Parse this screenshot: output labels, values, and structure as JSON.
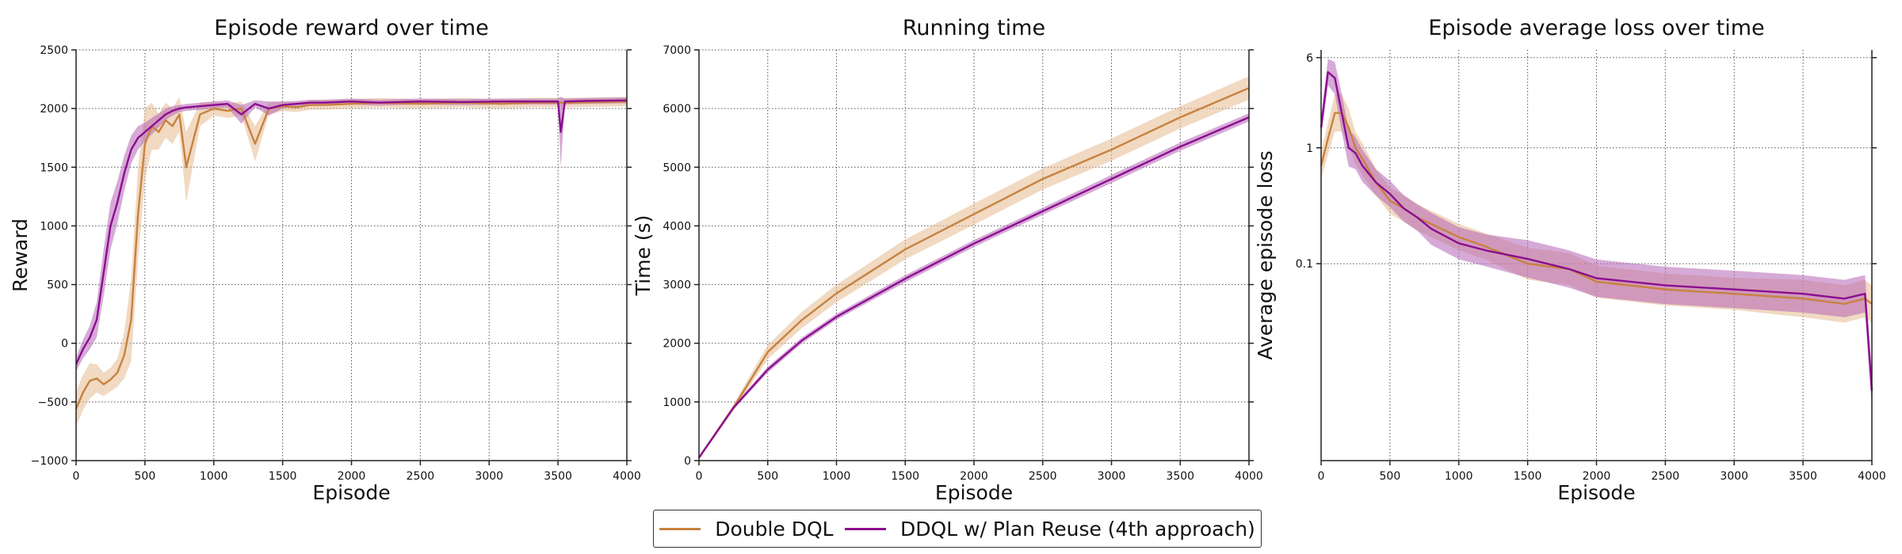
{
  "colors": {
    "double_dql": "#c7823f",
    "ddql_plan": "#8b0e8f",
    "band_double": "#e6b990",
    "band_plan": "#b565b6"
  },
  "legend": [
    {
      "name": "Double DQL",
      "color": "#c7823f"
    },
    {
      "name": "DDQL w/ Plan Reuse (4th approach)",
      "color": "#8b0e8f"
    }
  ],
  "chart_data": [
    {
      "type": "line",
      "title": "Episode reward over time",
      "xlabel": "Episode",
      "ylabel": "Reward",
      "xlim": [
        0,
        4000
      ],
      "ylim": [
        -1000,
        2500
      ],
      "xticks": [
        0,
        500,
        1000,
        1500,
        2000,
        2500,
        3000,
        3500,
        4000
      ],
      "yticks": [
        -1000,
        -500,
        0,
        500,
        1000,
        1500,
        2000,
        2500
      ],
      "ytick_labels": [
        "−1000",
        "−500",
        "0",
        "500",
        "1000",
        "1500",
        "2000",
        "2500"
      ],
      "grid": true,
      "series": [
        {
          "name": "Double DQL",
          "x": [
            0,
            50,
            100,
            150,
            200,
            250,
            300,
            350,
            400,
            450,
            500,
            550,
            600,
            650,
            700,
            750,
            800,
            900,
            1000,
            1100,
            1200,
            1300,
            1400,
            1500,
            1600,
            1700,
            1800,
            2000,
            2200,
            2500,
            2800,
            3100,
            3300,
            3600,
            3800,
            4000
          ],
          "y": [
            -560,
            -420,
            -320,
            -300,
            -350,
            -310,
            -250,
            -100,
            200,
            1100,
            1700,
            1850,
            1800,
            1900,
            1850,
            1950,
            1500,
            1950,
            2000,
            1980,
            2000,
            1700,
            2000,
            2020,
            2010,
            2030,
            2030,
            2040,
            2050,
            2040,
            2050,
            2040,
            2050,
            2050,
            2055,
            2060
          ],
          "band": [
            150,
            150,
            150,
            120,
            100,
            100,
            120,
            200,
            350,
            400,
            300,
            200,
            150,
            150,
            150,
            150,
            300,
            100,
            60,
            60,
            60,
            150,
            50,
            40,
            40,
            40,
            40,
            40,
            40,
            40,
            40,
            40,
            40,
            40,
            40,
            40
          ]
        },
        {
          "name": "DDQL w/ Plan Reuse (4th approach)",
          "x": [
            0,
            50,
            100,
            150,
            200,
            250,
            300,
            350,
            400,
            450,
            500,
            550,
            600,
            650,
            700,
            750,
            800,
            900,
            1000,
            1100,
            1200,
            1300,
            1400,
            1500,
            1600,
            1700,
            1800,
            2000,
            2200,
            2500,
            2800,
            3100,
            3300,
            3500,
            3520,
            3550,
            3700,
            4000
          ],
          "y": [
            -180,
            -50,
            50,
            200,
            600,
            1000,
            1200,
            1450,
            1650,
            1750,
            1800,
            1850,
            1900,
            1950,
            1980,
            2000,
            2010,
            2020,
            2030,
            2040,
            1950,
            2040,
            2000,
            2030,
            2040,
            2050,
            2050,
            2060,
            2050,
            2060,
            2055,
            2060,
            2060,
            2060,
            1800,
            2060,
            2065,
            2070
          ],
          "band": [
            60,
            80,
            100,
            150,
            200,
            200,
            180,
            150,
            120,
            100,
            80,
            70,
            60,
            50,
            40,
            30,
            30,
            30,
            30,
            30,
            80,
            30,
            60,
            30,
            25,
            25,
            25,
            25,
            25,
            25,
            25,
            25,
            25,
            25,
            300,
            25,
            25,
            25
          ]
        }
      ]
    },
    {
      "type": "line",
      "title": "Running time",
      "xlabel": "Episode",
      "ylabel": "Time (s)",
      "xlim": [
        0,
        4000
      ],
      "ylim": [
        0,
        7000
      ],
      "xticks": [
        0,
        500,
        1000,
        1500,
        2000,
        2500,
        3000,
        3500,
        4000
      ],
      "yticks": [
        0,
        1000,
        2000,
        3000,
        4000,
        5000,
        6000,
        7000
      ],
      "ytick_labels": [
        "0",
        "1000",
        "2000",
        "3000",
        "4000",
        "5000",
        "6000",
        "7000"
      ],
      "grid": true,
      "series": [
        {
          "name": "Double DQL",
          "x": [
            0,
            250,
            500,
            750,
            1000,
            1500,
            2000,
            2500,
            3000,
            3500,
            4000
          ],
          "y": [
            50,
            900,
            1850,
            2400,
            2850,
            3600,
            4200,
            4800,
            5300,
            5850,
            6350
          ],
          "band": [
            20,
            60,
            120,
            140,
            150,
            170,
            180,
            180,
            190,
            190,
            200
          ]
        },
        {
          "name": "DDQL w/ Plan Reuse (4th approach)",
          "x": [
            0,
            250,
            500,
            750,
            1000,
            1500,
            2000,
            2500,
            3000,
            3500,
            4000
          ],
          "y": [
            50,
            900,
            1550,
            2050,
            2450,
            3100,
            3700,
            4250,
            4800,
            5350,
            5850
          ],
          "band": [
            10,
            30,
            50,
            50,
            50,
            60,
            60,
            60,
            70,
            70,
            70
          ]
        }
      ]
    },
    {
      "type": "line",
      "title": "Episode average loss over time",
      "xlabel": "Episode",
      "ylabel": "Average episode loss",
      "xlim": [
        0,
        4000
      ],
      "ylim": [
        0.002,
        7
      ],
      "yscale": "log",
      "xticks": [
        0,
        500,
        1000,
        1500,
        2000,
        2500,
        3000,
        3500,
        4000
      ],
      "yticks": [
        0.1,
        1,
        6
      ],
      "ytick_labels": [
        "0.1",
        "1",
        "6"
      ],
      "grid": true,
      "series": [
        {
          "name": "Double DQL",
          "x": [
            0,
            50,
            100,
            150,
            200,
            250,
            300,
            400,
            500,
            600,
            700,
            800,
            1000,
            1200,
            1500,
            1800,
            2000,
            2500,
            3000,
            3500,
            3800,
            3950,
            4000
          ],
          "y": [
            0.7,
            1.2,
            2.0,
            2.0,
            1.5,
            1.0,
            0.8,
            0.5,
            0.35,
            0.3,
            0.25,
            0.22,
            0.17,
            0.14,
            0.1,
            0.09,
            0.07,
            0.06,
            0.055,
            0.05,
            0.045,
            0.05,
            0.045
          ],
          "band": [
            0.2,
            0.25,
            0.3,
            0.3,
            0.3,
            0.25,
            0.25,
            0.2,
            0.2,
            0.2,
            0.2,
            0.2,
            0.2,
            0.2,
            0.25,
            0.25,
            0.25,
            0.25,
            0.25,
            0.3,
            0.3,
            0.3,
            0.3
          ]
        },
        {
          "name": "DDQL w/ Plan Reuse (4th approach)",
          "x": [
            0,
            50,
            100,
            150,
            200,
            250,
            300,
            400,
            500,
            600,
            700,
            800,
            1000,
            1200,
            1500,
            1800,
            2000,
            2500,
            3000,
            3500,
            3800,
            3950,
            4000
          ],
          "y": [
            1.5,
            4.5,
            4.0,
            2.0,
            1.0,
            0.9,
            0.7,
            0.5,
            0.4,
            0.3,
            0.25,
            0.2,
            0.15,
            0.13,
            0.11,
            0.09,
            0.075,
            0.065,
            0.06,
            0.055,
            0.05,
            0.055,
            0.008
          ],
          "band": [
            0.15,
            0.2,
            0.25,
            0.3,
            0.3,
            0.25,
            0.25,
            0.2,
            0.2,
            0.2,
            0.2,
            0.25,
            0.25,
            0.25,
            0.3,
            0.3,
            0.3,
            0.3,
            0.3,
            0.3,
            0.3,
            0.3,
            0.3
          ]
        }
      ]
    }
  ]
}
